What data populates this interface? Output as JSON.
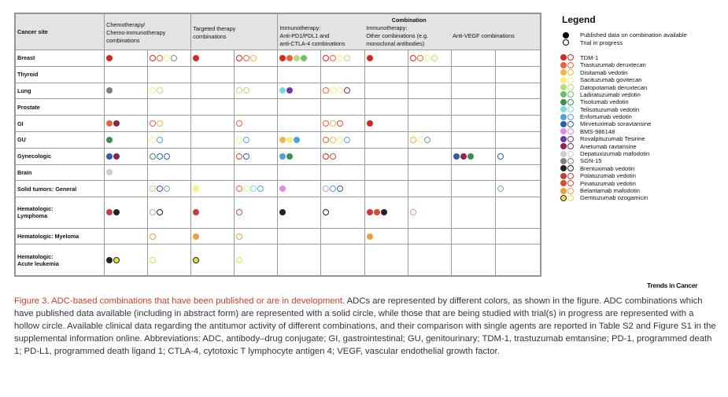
{
  "colors": {
    "TDM1": "#d3291f",
    "Trastuzumab_deruxtecan": "#e8633c",
    "Disitamab_vedotin": "#f0b44d",
    "Sacituzumab_govitecan": "#f5f080",
    "Datopotamab_deruxtecan": "#b8dc7a",
    "Ladiratuzumab_vedotin": "#6fbf6a",
    "Tisotumab_vedotin": "#3c8f4e",
    "Telisotuzumab_vedotin": "#7ad7e6",
    "Enfortumab_vedotin": "#4fa3d8",
    "Mirvetuximab_soravtansine": "#2f5da7",
    "BMS986148": "#e08be0",
    "Rovalpituzumab_Tesirine": "#6a3ca3",
    "Anetumab_ravtansine": "#8e2550",
    "Depatuxizumab_mafodotin": "#cfcfcf",
    "SGN15": "#808080",
    "Brentuximab_vedotin": "#222222",
    "Polatuzumab_vedotin": "#c93a3a",
    "Pinatuzumab_vedotin": "#d94a2e",
    "Belantamab_mafodotin": "#e8a040",
    "Gemtuzumab_ozogamicin": "#e8e040"
  },
  "table": {
    "header": {
      "cancer_site": "Cancer site",
      "chemo": [
        "Chemotherapy/",
        "Chemo-immunotherapy",
        "combinations"
      ],
      "targeted": [
        "Targeted therapy",
        "combinations"
      ],
      "combination": "Combination",
      "immuno_pd1": [
        "Immunotherapy:",
        "Anti-PD1/PDL1 and",
        "anti-CTLA-4 combinations"
      ],
      "immuno_other": [
        "Immunotherapy:",
        "Other combinations (e.g.",
        "monoclonal antibodies)"
      ],
      "vegf": [
        "Anti-VEGF combinations"
      ]
    },
    "rows": [
      {
        "site": [
          "Breast"
        ],
        "cells": [
          {
            "solid": [
              "TDM1"
            ],
            "hollow": [
              "TDM1",
              "Trastuzumab_deruxtecan",
              "Sacituzumab_govitecan",
              "SGN15"
            ]
          },
          {
            "solid": [
              "TDM1"
            ],
            "hollow": [
              "TDM1",
              "Trastuzumab_deruxtecan",
              "Disitamab_vedotin"
            ]
          },
          {
            "solid": [
              "TDM1",
              "Trastuzumab_deruxtecan",
              "Datopotamab_deruxtecan",
              "Ladiratuzumab_vedotin"
            ],
            "hollow": [
              "TDM1",
              "Trastuzumab_deruxtecan",
              "Sacituzumab_govitecan",
              "Datopotamab_deruxtecan"
            ]
          },
          {
            "solid": [
              "TDM1"
            ],
            "hollow": [
              "TDM1",
              "Trastuzumab_deruxtecan",
              "Sacituzumab_govitecan",
              "Datopotamab_deruxtecan"
            ]
          },
          {
            "solid": [],
            "hollow": []
          }
        ]
      },
      {
        "site": [
          "Thyroid"
        ],
        "cells": [
          {
            "solid": [],
            "hollow": []
          },
          {
            "solid": [],
            "hollow": []
          },
          {
            "solid": [],
            "hollow": []
          },
          {
            "solid": [],
            "hollow": []
          },
          {
            "solid": [],
            "hollow": []
          }
        ]
      },
      {
        "site": [
          "Lung"
        ],
        "cells": [
          {
            "solid": [
              "SGN15"
            ],
            "hollow": [
              "Sacituzumab_govitecan",
              "Datopotamab_deruxtecan"
            ]
          },
          {
            "solid": [],
            "hollow": [
              "Datopotamab_deruxtecan",
              "Datopotamab_deruxtecan"
            ]
          },
          {
            "solid": [
              "Telisotuzumab_vedotin",
              "Rovalpituzumab_Tesirine"
            ],
            "hollow": [
              "Trastuzumab_deruxtecan",
              "Sacituzumab_govitecan",
              "Sacituzumab_govitecan",
              "Anetumab_ravtansine"
            ]
          },
          {
            "solid": [],
            "hollow": []
          },
          {
            "solid": [],
            "hollow": []
          }
        ]
      },
      {
        "site": [
          "Prostate"
        ],
        "cells": [
          {
            "solid": [],
            "hollow": []
          },
          {
            "solid": [],
            "hollow": []
          },
          {
            "solid": [],
            "hollow": []
          },
          {
            "solid": [],
            "hollow": []
          },
          {
            "solid": [],
            "hollow": []
          }
        ]
      },
      {
        "site": [
          "GI"
        ],
        "cells": [
          {
            "solid": [
              "Trastuzumab_deruxtecan",
              "Anetumab_ravtansine"
            ],
            "hollow": [
              "Trastuzumab_deruxtecan",
              "Disitamab_vedotin"
            ]
          },
          {
            "solid": [],
            "hollow": [
              "Trastuzumab_deruxtecan"
            ]
          },
          {
            "solid": [],
            "hollow": [
              "Trastuzumab_deruxtecan",
              "Disitamab_vedotin",
              "Pinatuzumab_vedotin"
            ]
          },
          {
            "solid": [
              "TDM1"
            ],
            "hollow": []
          },
          {
            "solid": [],
            "hollow": []
          }
        ]
      },
      {
        "site": [
          "GU"
        ],
        "cells": [
          {
            "solid": [
              "Tisotumab_vedotin"
            ],
            "hollow": [
              "Sacituzumab_govitecan",
              "Enfortumab_vedotin"
            ]
          },
          {
            "solid": [],
            "hollow": [
              "Sacituzumab_govitecan",
              "Enfortumab_vedotin"
            ]
          },
          {
            "solid": [
              "Disitamab_vedotin",
              "Sacituzumab_govitecan",
              "Enfortumab_vedotin"
            ],
            "hollow": [
              "Trastuzumab_deruxtecan",
              "Disitamab_vedotin",
              "Sacituzumab_govitecan",
              "Enfortumab_vedotin"
            ]
          },
          {
            "solid": [],
            "hollow": [
              "Disitamab_vedotin",
              "Sacituzumab_govitecan",
              "Enfortumab_vedotin"
            ]
          },
          {
            "solid": [],
            "hollow": []
          }
        ]
      },
      {
        "site": [
          "Gynecologic"
        ],
        "cells": [
          {
            "solid": [
              "Mirvetuximab_soravtansine",
              "Anetumab_ravtansine"
            ],
            "hollow": [
              "Tisotumab_vedotin",
              "Mirvetuximab_soravtansine",
              "Mirvetuximab_soravtansine"
            ]
          },
          {
            "solid": [],
            "hollow": [
              "Pinatuzumab_vedotin",
              "Mirvetuximab_soravtansine"
            ]
          },
          {
            "solid": [
              "Enfortumab_vedotin",
              "Tisotumab_vedotin"
            ],
            "hollow": [
              "TDM1",
              "Pinatuzumab_vedotin"
            ]
          },
          {
            "solid": [],
            "hollow": []
          },
          {
            "solid": [
              "Mirvetuximab_soravtansine",
              "Anetumab_ravtansine",
              "Tisotumab_vedotin"
            ],
            "hollow": [
              "Mirvetuximab_soravtansine"
            ]
          }
        ]
      },
      {
        "site": [
          "Brain"
        ],
        "cells": [
          {
            "solid": [
              "Depatuxizumab_mafodotin"
            ],
            "hollow": []
          },
          {
            "solid": [],
            "hollow": []
          },
          {
            "solid": [],
            "hollow": []
          },
          {
            "solid": [],
            "hollow": []
          },
          {
            "solid": [],
            "hollow": []
          }
        ]
      },
      {
        "site": [
          "Solid tumors: General"
        ],
        "cells": [
          {
            "solid": [],
            "hollow": [
              "Datopotamab_deruxtecan",
              "Rovalpituzumab_Tesirine",
              "Ladiratuzumab_vedotin"
            ]
          },
          {
            "solid": [
              "Sacituzumab_govitecan"
            ],
            "hollow": [
              "Trastuzumab_deruxtecan",
              "Sacituzumab_govitecan",
              "Telisotuzumab_vedotin",
              "Enfortumab_vedotin"
            ]
          },
          {
            "solid": [
              "BMS986148"
            ],
            "hollow": [
              "BMS986148",
              "Enfortumab_vedotin",
              "Mirvetuximab_soravtansine"
            ]
          },
          {
            "solid": [],
            "hollow": []
          },
          {
            "solid": [],
            "hollow": [
              "Ladiratuzumab_vedotin"
            ]
          }
        ]
      },
      {
        "site": [
          "Hematologic:",
          "Lymphoma"
        ],
        "cells": [
          {
            "solid": [
              "Polatuzumab_vedotin",
              "Brentuximab_vedotin"
            ],
            "hollow": [
              "BMS986148",
              "Brentuximab_vedotin"
            ]
          },
          {
            "solid": [
              "Polatuzumab_vedotin"
            ],
            "hollow": [
              "Pinatuzumab_vedotin"
            ]
          },
          {
            "solid": [
              "Brentuximab_vedotin"
            ],
            "hollow": [
              "Brentuximab_vedotin"
            ]
          },
          {
            "solid": [
              "Polatuzumab_vedotin",
              "Pinatuzumab_vedotin",
              "Brentuximab_vedotin"
            ],
            "hollow": [
              "BMS986148"
            ]
          },
          {
            "solid": [],
            "hollow": []
          }
        ]
      },
      {
        "site": [
          "Hematologic: Myeloma"
        ],
        "cells": [
          {
            "solid": [],
            "hollow": [
              "Belantamab_mafodotin"
            ]
          },
          {
            "solid": [
              "Belantamab_mafodotin"
            ],
            "hollow": [
              "Belantamab_mafodotin"
            ]
          },
          {
            "solid": [],
            "hollow": []
          },
          {
            "solid": [
              "Belantamab_mafodotin"
            ],
            "hollow": []
          },
          {
            "solid": [],
            "hollow": []
          }
        ]
      },
      {
        "site": [
          "Hematologic:",
          "Acute leukemia"
        ],
        "cells": [
          {
            "solid": [
              "Brentuximab_vedotin",
              "Gemtuzumab_ozogamicin"
            ],
            "hollow": [
              "Gemtuzumab_ozogamicin"
            ]
          },
          {
            "solid": [
              "Gemtuzumab_ozogamicin"
            ],
            "hollow": [
              "Gemtuzumab_ozogamicin"
            ]
          },
          {
            "solid": [],
            "hollow": []
          },
          {
            "solid": [],
            "hollow": []
          },
          {
            "solid": [],
            "hollow": []
          }
        ]
      }
    ]
  },
  "legend": {
    "title": "Legend",
    "key_solid": "Published data on combination available",
    "key_hollow": "Trial in progress",
    "items": [
      {
        "label": "TDM-1",
        "color": "TDM1"
      },
      {
        "label": "Trastuzumab deruxtecan",
        "color": "Trastuzumab_deruxtecan"
      },
      {
        "label": "Disitamab vedotin",
        "color": "Disitamab_vedotin"
      },
      {
        "label": "Sacituzumab govitecan",
        "color": "Sacituzumab_govitecan"
      },
      {
        "label": "Datopotamab deruxtecan",
        "color": "Datopotamab_deruxtecan"
      },
      {
        "label": "Ladiratuzumab vedotin",
        "color": "Ladiratuzumab_vedotin"
      },
      {
        "label": "Tisotumab vedotin",
        "color": "Tisotumab_vedotin"
      },
      {
        "label": "Telisotuzumab vedotin",
        "color": "Telisotuzumab_vedotin"
      },
      {
        "label": "Enfortumab vedotin",
        "color": "Enfortumab_vedotin"
      },
      {
        "label": "Mirvetuximab soravtansine",
        "color": "Mirvetuximab_soravtansine"
      },
      {
        "label": "BMS-986148",
        "color": "BMS986148"
      },
      {
        "label": "Rovalpituzumab Tesirine",
        "color": "Rovalpituzumab_Tesirine"
      },
      {
        "label": "Anetumab ravtansine",
        "color": "Anetumab_ravtansine"
      },
      {
        "label": "Depatuxizumab mafodotin",
        "color": "Depatuxizumab_mafodotin"
      },
      {
        "label": "SGN-15",
        "color": "SGN15"
      },
      {
        "label": "Brentuximab vedotin",
        "color": "Brentuximab_vedotin"
      },
      {
        "label": "Polatuzumab vedotin",
        "color": "Polatuzumab_vedotin"
      },
      {
        "label": "Pinatuzumab vedotin",
        "color": "Pinatuzumab_vedotin"
      },
      {
        "label": "Belantamab mafodotin",
        "color": "Belantamab_mafodotin"
      },
      {
        "label": "Gemtuzumab ozogamicin",
        "color": "Gemtuzumab_ozogamicin"
      }
    ]
  },
  "logo": "Trends in Cancer",
  "caption": {
    "title": "Figure 3. ADC-based combinations that have been published or are in development.",
    "body": " ADCs are represented by different colors, as shown in the figure. ADC combinations which have published data available (including in abstract form) are represented with a solid circle, while those that are being studied with trial(s) in progress are represented with a hollow circle. Available clinical data regarding the antitumor activity of different combinations, and their comparison with single agents are reported in Table S2 and Figure S1 in the supplemental information online. Abbreviations: ADC, antibody–drug conjugate; GI, gastrointestinal; GU, genitourinary; TDM-1, trastuzumab emtansine; PD-1, programmed death 1; PD-L1, programmed death ligand 1; CTLA-4, cytotoxic T lymphocyte antigen 4; VEGF, vascular endothelial growth factor."
  }
}
